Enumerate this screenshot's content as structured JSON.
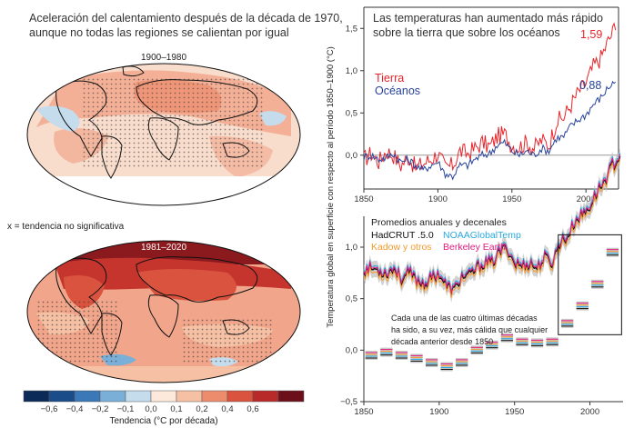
{
  "colors": {
    "land": "#e8232a",
    "ocean": "#27429a",
    "hadcrut": "#111111",
    "noaa": "#29a8e0",
    "kadow": "#f39a2e",
    "berkeley": "#e6197e",
    "light_pink": "#f8dccc",
    "mid_salmon": "#f1a58a",
    "deep_red": "#c5352e"
  },
  "left": {
    "title_line1": "Aceleración del calentamiento después de la década de 1970,",
    "title_line2": "aunque no todas las regiones se calientan por igual",
    "map1_label": "1900–1980",
    "legend_note": "x = tendencia no significativa",
    "map2_label": "1981–2020",
    "colorbar_ticks": [
      "−0,6",
      "−0,4",
      "−0,2",
      "−0,1",
      "0,0",
      "0,1",
      "0,2",
      "0,4",
      "0,6"
    ],
    "colorbar_colors": [
      "#0c2a58",
      "#1a4c8a",
      "#3a78b7",
      "#7ab0d8",
      "#c4dcec",
      "#fde9dc",
      "#f6c0a4",
      "#ec8c6c",
      "#d9533f",
      "#b82a2a",
      "#6b0f1a"
    ],
    "colorbar_label": "Tendencia (°C por década)"
  },
  "ylabel": "Temperatura global en superficie con respecto al período 1850–1900 (°C)",
  "chart_data": [
    {
      "type": "line",
      "title": "Las temperaturas han aumentado más rápido sobre la tierra que sobre los océanos",
      "title_line1": "Las temperaturas han aumentado más rápido",
      "title_line2": "sobre la tierra que sobre los océanos",
      "xlim": [
        1850,
        2022
      ],
      "ylim": [
        -0.4,
        1.75
      ],
      "xticks": [
        1850,
        1900,
        1950,
        2000
      ],
      "xtick_labels": [
        "1850",
        "1900",
        "1950",
        "2000"
      ],
      "yticks": [
        0.0,
        0.5,
        1.0,
        1.5
      ],
      "ytick_labels": [
        "0,0",
        "0,5",
        "1,0",
        "1,5"
      ],
      "series": [
        {
          "name": "Tierra",
          "color": "#e8232a",
          "x": [
            1850,
            1855,
            1860,
            1865,
            1870,
            1875,
            1880,
            1885,
            1890,
            1895,
            1900,
            1905,
            1910,
            1915,
            1920,
            1925,
            1930,
            1935,
            1940,
            1945,
            1950,
            1955,
            1960,
            1965,
            1970,
            1975,
            1980,
            1985,
            1990,
            1995,
            2000,
            2005,
            2010,
            2015,
            2018,
            2020
          ],
          "y": [
            -0.05,
            0.02,
            -0.08,
            0.05,
            0.0,
            -0.12,
            -0.02,
            -0.15,
            -0.1,
            -0.05,
            0.02,
            -0.15,
            -0.12,
            0.05,
            0.02,
            0.08,
            0.15,
            0.1,
            0.22,
            0.25,
            0.12,
            0.1,
            0.15,
            0.08,
            0.18,
            0.12,
            0.4,
            0.45,
            0.6,
            0.75,
            0.85,
            1.05,
            1.15,
            1.35,
            1.45,
            1.59
          ],
          "end_label": "1,59"
        },
        {
          "name": "Océanos",
          "color": "#27429a",
          "x": [
            1850,
            1855,
            1860,
            1865,
            1870,
            1875,
            1880,
            1885,
            1890,
            1895,
            1900,
            1905,
            1910,
            1915,
            1920,
            1925,
            1930,
            1935,
            1940,
            1945,
            1950,
            1955,
            1960,
            1965,
            1970,
            1975,
            1980,
            1985,
            1990,
            1995,
            2000,
            2005,
            2010,
            2015,
            2018,
            2020
          ],
          "y": [
            -0.02,
            0.0,
            -0.05,
            -0.03,
            0.02,
            -0.08,
            -0.05,
            -0.12,
            -0.18,
            -0.12,
            -0.08,
            -0.22,
            -0.25,
            -0.12,
            -0.12,
            -0.05,
            0.0,
            0.02,
            0.12,
            0.15,
            0.05,
            0.0,
            0.05,
            0.0,
            0.08,
            0.05,
            0.2,
            0.22,
            0.35,
            0.42,
            0.48,
            0.6,
            0.68,
            0.8,
            0.85,
            0.88
          ],
          "end_label": "0,88"
        }
      ],
      "baseline": 0.0
    },
    {
      "type": "line",
      "title": "Promedios anuales y decenales",
      "xlim": [
        1850,
        2022
      ],
      "ylim": [
        -0.5,
        1.3
      ],
      "xticks": [
        1850,
        1900,
        1950,
        2000
      ],
      "xtick_labels": [
        "1850",
        "1900",
        "1950",
        "2000"
      ],
      "yticks": [
        -0.5,
        0.0,
        0.5,
        1.0
      ],
      "ytick_labels": [
        "−0,5",
        "0,0",
        "0,5",
        "1,0"
      ],
      "legend": [
        {
          "name": "HadCRUT .5.0",
          "color": "#111111"
        },
        {
          "name": "NOAAGlobalTemp",
          "color": "#29a8e0"
        },
        {
          "name": "Kadow y otros",
          "color": "#f39a2e"
        },
        {
          "name": "Berkeley Earth",
          "color": "#e6197e"
        }
      ],
      "annual": {
        "x": [
          1850,
          1855,
          1860,
          1865,
          1870,
          1875,
          1880,
          1885,
          1890,
          1895,
          1900,
          1905,
          1910,
          1915,
          1920,
          1925,
          1930,
          1935,
          1940,
          1945,
          1950,
          1955,
          1960,
          1965,
          1970,
          1975,
          1980,
          1985,
          1990,
          1995,
          2000,
          2005,
          2010,
          2015,
          2018,
          2020
        ],
        "y": [
          -0.02,
          0.0,
          -0.02,
          -0.05,
          0.0,
          -0.1,
          -0.05,
          -0.12,
          -0.15,
          -0.1,
          -0.05,
          -0.18,
          -0.22,
          -0.08,
          -0.08,
          0.0,
          0.05,
          0.05,
          0.15,
          0.2,
          0.05,
          0.02,
          0.05,
          0.0,
          0.1,
          0.05,
          0.25,
          0.3,
          0.45,
          0.52,
          0.6,
          0.75,
          0.85,
          1.0,
          1.05,
          1.1
        ]
      },
      "decadal_note_line1": "Cada una de las cuatro últimas décadas",
      "decadal_note_line2": "ha sido, a su vez, más cálida que cualquier",
      "decadal_note_line3": "década anterior desde 1850",
      "decades": {
        "x": [
          1850,
          1860,
          1870,
          1880,
          1890,
          1900,
          1910,
          1920,
          1930,
          1940,
          1950,
          1960,
          1970,
          1980,
          1990,
          2000,
          2010
        ],
        "y": [
          -0.05,
          -0.02,
          -0.05,
          -0.08,
          -0.12,
          -0.16,
          -0.12,
          0.0,
          0.05,
          0.12,
          0.08,
          0.07,
          0.08,
          0.26,
          0.43,
          0.64,
          0.95
        ]
      }
    }
  ]
}
